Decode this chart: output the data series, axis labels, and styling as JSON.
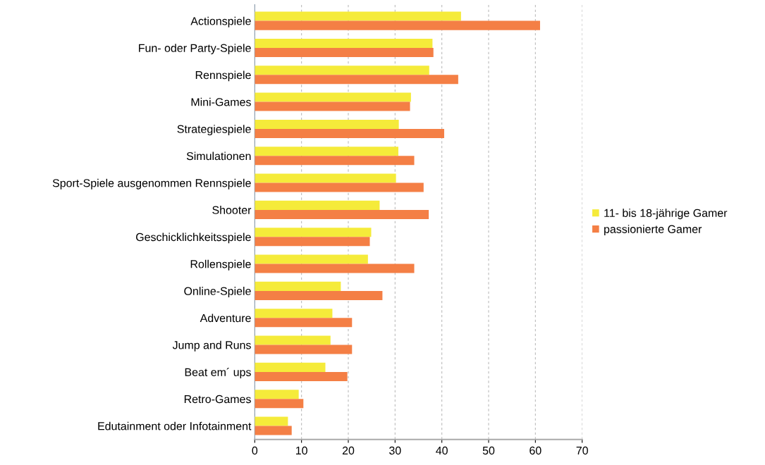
{
  "chart_data": {
    "type": "bar",
    "orientation": "horizontal",
    "categories": [
      "Actionspiele",
      "Fun- oder Party-Spiele",
      "Rennspiele",
      "Mini-Games",
      "Strategiespiele",
      "Simulationen",
      "Sport-Spiele ausgenommen Rennspiele",
      "Shooter",
      "Geschicklichkeitsspiele",
      "Rollenspiele",
      "Online-Spiele",
      "Adventure",
      "Jump and Runs",
      "Beat em´ ups",
      "Retro-Games",
      "Edutainment oder Infotainment"
    ],
    "series": [
      {
        "name": "11- bis 18-jährige Gamer",
        "color": "#f5eb3a",
        "values": [
          44.1,
          38.0,
          37.3,
          33.4,
          30.8,
          30.7,
          30.2,
          26.7,
          24.9,
          24.2,
          18.4,
          16.6,
          16.2,
          15.1,
          9.4,
          7.1
        ]
      },
      {
        "name": "passionierte Gamer",
        "color": "#f47f45",
        "values": [
          61.0,
          38.2,
          43.5,
          33.2,
          40.5,
          34.1,
          36.1,
          37.2,
          24.6,
          34.1,
          27.3,
          20.8,
          20.8,
          19.8,
          10.4,
          7.9
        ]
      }
    ],
    "xlim": [
      0,
      70
    ],
    "xticks": [
      0,
      10,
      20,
      30,
      40,
      50,
      60,
      70
    ],
    "grid": "x",
    "legend": "right"
  }
}
